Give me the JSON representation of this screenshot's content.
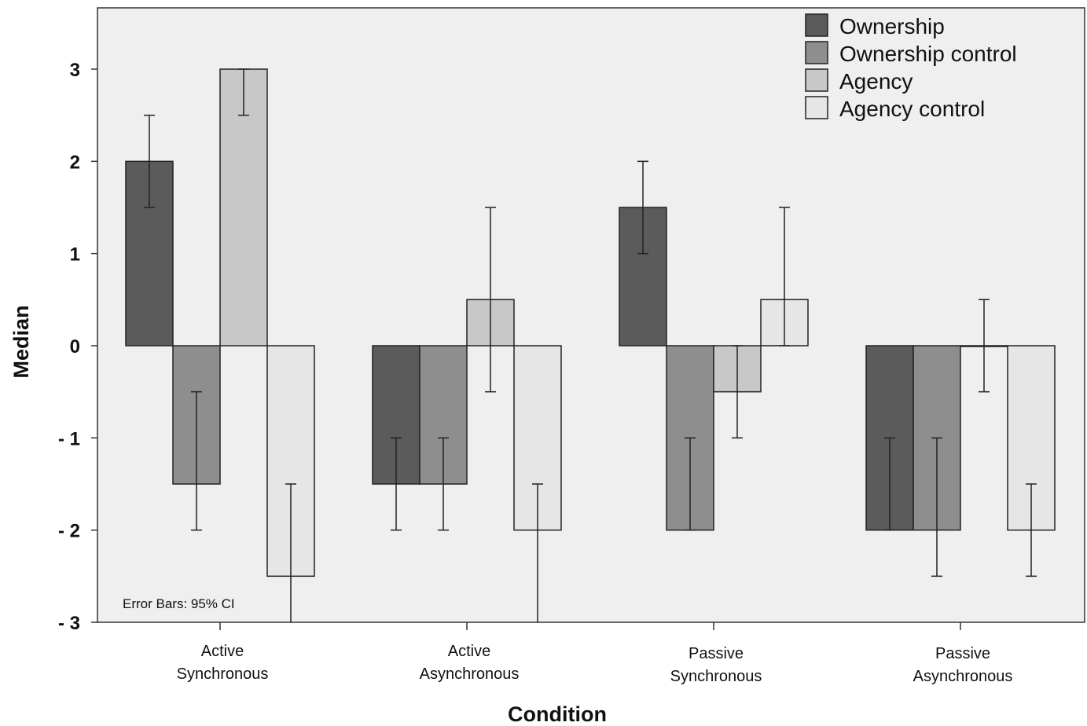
{
  "chart_data": {
    "type": "bar",
    "title": "",
    "xlabel": "Condition",
    "ylabel": "Median",
    "ylim": [
      -3,
      3.7
    ],
    "yticks": [
      3,
      2,
      1,
      0,
      -1,
      -2,
      -3
    ],
    "ytick_labels": [
      "3",
      "2",
      "1",
      "0",
      "- 1",
      "- 2",
      "- 3"
    ],
    "categories": [
      [
        "Active",
        "Synchronous"
      ],
      [
        "Active",
        "Asynchronous"
      ],
      [
        "Passive",
        "Synchronous"
      ],
      [
        "Passive",
        "Asynchronous"
      ]
    ],
    "series": [
      {
        "name": "Ownership",
        "color": "#5b5b5b",
        "values": [
          2,
          -1.5,
          1.5,
          -2
        ],
        "err_low": [
          1.5,
          -2,
          1,
          -2
        ],
        "err_high": [
          2.5,
          -1,
          2,
          -1
        ]
      },
      {
        "name": "Ownership control",
        "color": "#8e8e8e",
        "values": [
          -1.5,
          -1.5,
          -2,
          -2
        ],
        "err_low": [
          -2,
          -2,
          -2,
          -2.5
        ],
        "err_high": [
          -0.5,
          -1,
          -1,
          -1
        ]
      },
      {
        "name": "Agency",
        "color": "#c8c8c8",
        "values": [
          3,
          0.5,
          -0.5,
          0
        ],
        "err_low": [
          2.5,
          -0.5,
          -1,
          -0.5
        ],
        "err_high": [
          3,
          1.5,
          0,
          0.5
        ]
      },
      {
        "name": "Agency control",
        "color": "#e6e6e6",
        "values": [
          -2.5,
          -2,
          0.5,
          -2
        ],
        "err_low": [
          -3,
          -3,
          0,
          -2.5
        ],
        "err_high": [
          -1.5,
          -1.5,
          1.5,
          -1.5
        ]
      }
    ],
    "legend_position": "top-right",
    "plot_background": "#efefef",
    "grid": false,
    "annotation": "Error Bars: 95% CI"
  }
}
